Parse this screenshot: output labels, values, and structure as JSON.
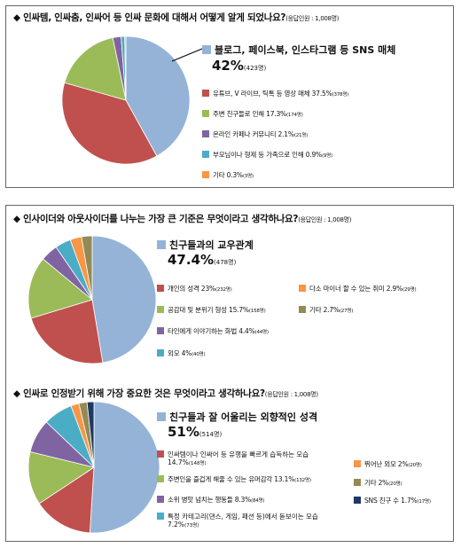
{
  "colors": {
    "blue": "#95b3d7",
    "red": "#c0504d",
    "green": "#9bbb59",
    "purple": "#8064a2",
    "teal": "#4bacc6",
    "orange": "#f79646",
    "olive": "#948a54",
    "navy": "#1f3864"
  },
  "chart_data": [
    {
      "type": "pie",
      "title": "◆ 인싸템, 인싸춤, 인싸어 등 인싸 문화에 대해서 어떻게 알게 되었나요?",
      "respondents": "(응답인원 : 1,008명)",
      "labels": [
        "블로그, 페이스북, 인스타그램 등 SNS 매체",
        "유튜브, V 라이브, 틱톡 등 영상 매체",
        "주변 친구들로 인해",
        "온라인 카페나 커뮤니티",
        "부모님이나 형제 등 가족으로 인해",
        "기타"
      ],
      "values": [
        42,
        37.5,
        17.3,
        2.1,
        0.9,
        0.3
      ],
      "counts": [
        "(423명)",
        "(378명)",
        "(174명)",
        "(21명)",
        "(9명)",
        "(3명)"
      ],
      "colors": [
        "#95b3d7",
        "#c0504d",
        "#9bbb59",
        "#8064a2",
        "#4bacc6",
        "#f79646"
      ],
      "legend_text": [
        "블로그, 페이스북, 인스타그램 등 SNS 매체",
        "유튜브, V 라이브, 틱톡 등 영상 매체 37.5%",
        "주변 친구들로 인해 17.3%",
        "온라인 카페나 커뮤니티 2.1%",
        "부모님이나 형제 등 가족으로 인해 0.9%",
        "기타 0.3%"
      ],
      "top_pct": "42%"
    },
    {
      "type": "pie",
      "title": "◆ 인사이더와 아웃사이더를 나누는 가장 큰 기준은 무엇이라고 생각하나요?",
      "respondents": "(응답인원 : 1,008명)",
      "labels": [
        "친구들과의 교우관계",
        "개인의 성격",
        "공감대 및 분위기 형성",
        "타인에게 이야기하는 화법",
        "외모",
        "다소 마이너 할 수 있는 취미",
        "기타"
      ],
      "values": [
        47.4,
        23,
        15.7,
        4.4,
        4,
        2.9,
        2.7
      ],
      "counts": [
        "(478명)",
        "(232명)",
        "(158명)",
        "(44명)",
        "(40명)",
        "(29명)",
        "(27명)"
      ],
      "colors": [
        "#95b3d7",
        "#c0504d",
        "#9bbb59",
        "#8064a2",
        "#4bacc6",
        "#f79646",
        "#948a54"
      ],
      "legend_text": [
        "친구들과의 교우관계",
        "개인의 성격 23%",
        "공감대 및 분위기 형성 15.7%",
        "타인에게 이야기하는 화법 4.4%",
        "외모 4%",
        "다소 마이너 할 수 있는 취미 2.9%",
        "기타 2.7%"
      ],
      "top_pct": "47.4%"
    },
    {
      "type": "pie",
      "title": "◆ 인싸로 인정받기 위해 가장 중요한 것은 무엇이라고 생각하나요?",
      "respondents": "(응답인원 : 1,008명)",
      "labels": [
        "친구들과 잘 어울리는 외향적인 성격",
        "인싸템이나 인싸어 등 유행을 빠르게 습득하는 모습",
        "주변인을 즐겁게 해줄 수 있는 유머감각",
        "소위 병맛 넘치는 행동들",
        "특정 카테고리(댄스, 게임, 패션 등)에서 돋보이는 모습",
        "뛰어난 외모",
        "기타",
        "SNS 친구 수"
      ],
      "values": [
        51,
        14.7,
        13.1,
        8.3,
        7.2,
        2,
        2,
        1.7
      ],
      "counts": [
        "(514명)",
        "(148명)",
        "(132명)",
        "(84명)",
        "(73명)",
        "(20명)",
        "(20명)",
        "(17명)"
      ],
      "colors": [
        "#95b3d7",
        "#c0504d",
        "#9bbb59",
        "#8064a2",
        "#4bacc6",
        "#f79646",
        "#948a54",
        "#1f3864"
      ],
      "legend_text": [
        "친구들과 잘 어울리는 외향적인 성격",
        "인싸템이나 인싸어 등 유행을 빠르게 습득하는 모습",
        "14.7%",
        "주변인을 즐겁게 해줄 수 있는 유머감각 13.1%",
        "소위 병맛 넘치는 행동들 8.3%",
        "특정 카테고리(댄스, 게임, 패션 등)에서 돋보이는 모습",
        "7.2%",
        "뛰어난 외모 2%",
        "기타 2%",
        "SNS 친구 수 1.7%"
      ],
      "top_pct": "51%"
    }
  ]
}
